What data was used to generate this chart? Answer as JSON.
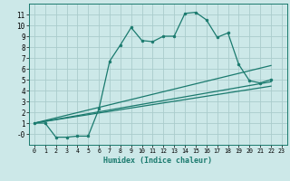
{
  "xlabel": "Humidex (Indice chaleur)",
  "bg_color": "#cce8e8",
  "grid_color": "#aacccc",
  "line_color": "#1a7a6e",
  "xlim": [
    -0.5,
    23.5
  ],
  "ylim": [
    -1.0,
    12.0
  ],
  "x_ticks": [
    0,
    1,
    2,
    3,
    4,
    5,
    6,
    7,
    8,
    9,
    10,
    11,
    12,
    13,
    14,
    15,
    16,
    17,
    18,
    19,
    20,
    21,
    22,
    23
  ],
  "y_ticks": [
    0,
    1,
    2,
    3,
    4,
    5,
    6,
    7,
    8,
    9,
    10,
    11
  ],
  "series_main": {
    "x": [
      0,
      1,
      2,
      3,
      4,
      5,
      6,
      7,
      8,
      9,
      10,
      11,
      12,
      13,
      14,
      15,
      16,
      17,
      18,
      19,
      20,
      21,
      22
    ],
    "y": [
      1.0,
      1.0,
      -0.3,
      -0.3,
      -0.2,
      -0.2,
      2.3,
      6.7,
      8.2,
      9.8,
      8.6,
      8.5,
      9.0,
      9.0,
      11.1,
      11.2,
      10.5,
      8.9,
      9.3,
      6.4,
      4.9,
      4.7,
      5.0
    ]
  },
  "series_lines": [
    {
      "x": [
        0,
        22
      ],
      "y": [
        1.0,
        6.3
      ]
    },
    {
      "x": [
        0,
        22
      ],
      "y": [
        1.0,
        4.8
      ]
    },
    {
      "x": [
        0,
        22
      ],
      "y": [
        1.0,
        4.4
      ]
    }
  ]
}
